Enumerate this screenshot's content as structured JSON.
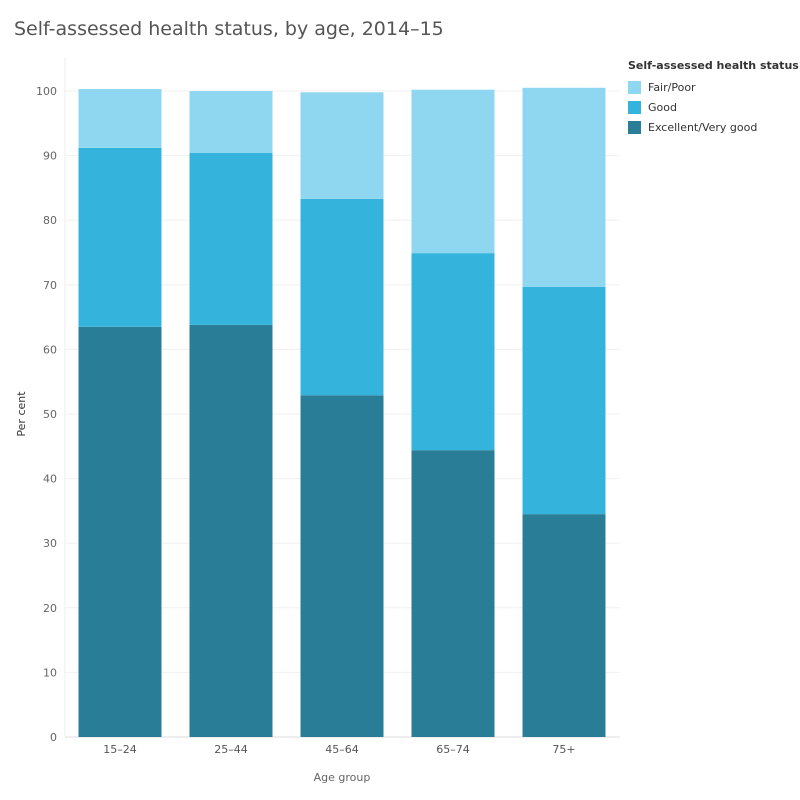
{
  "title": "Self-assessed health status, by age, 2014–15",
  "chart_data": {
    "type": "bar",
    "stacked": true,
    "title": "Self-assessed health status, by age, 2014–15",
    "xlabel": "Age group",
    "ylabel": "Per cent",
    "ylim": [
      0,
      100
    ],
    "yticks": [
      0,
      10,
      20,
      30,
      40,
      50,
      60,
      70,
      80,
      90,
      100
    ],
    "grid": true,
    "legend_title": "Self-assessed health status",
    "legend_position": "top-right",
    "categories": [
      "15–24",
      "25–44",
      "45–64",
      "65–74",
      "75+"
    ],
    "series": [
      {
        "name": "Excellent/Very good",
        "color": "#2a7d96",
        "values": [
          63.5,
          63.8,
          52.9,
          44.4,
          34.5
        ]
      },
      {
        "name": "Good",
        "color": "#34b3dc",
        "values": [
          27.7,
          26.6,
          30.4,
          30.5,
          35.2
        ]
      },
      {
        "name": "Fair/Poor",
        "color": "#8fd7f0",
        "values": [
          9.1,
          9.6,
          16.5,
          25.3,
          30.8
        ]
      }
    ]
  }
}
